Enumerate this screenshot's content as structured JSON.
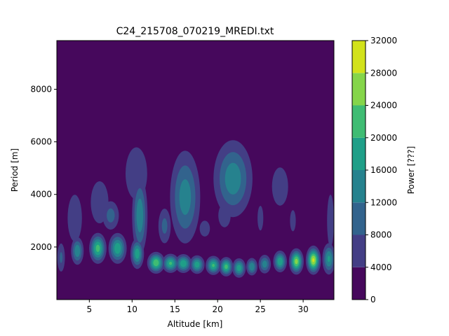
{
  "chart_data": {
    "type": "heatmap",
    "subtype": "filled-contour",
    "title": "C24_215708_070219_MREDI.txt",
    "xlabel": "Altitude [km]",
    "ylabel": "Period [m]",
    "xlim": [
      1.2,
      33.6
    ],
    "ylim": [
      0,
      9850
    ],
    "xticks": [
      5,
      10,
      15,
      20,
      25,
      30
    ],
    "yticks": [
      2000,
      4000,
      6000,
      8000
    ],
    "colorbar": {
      "label": "Power [???]",
      "levels": [
        0,
        4000,
        8000,
        12000,
        16000,
        20000,
        24000,
        28000,
        32000
      ],
      "tick_labels": [
        "0",
        "4000",
        "8000",
        "12000",
        "16000",
        "20000",
        "24000",
        "28000",
        "32000"
      ],
      "colors": [
        "#46085c",
        "#433e85",
        "#32638d",
        "#26828e",
        "#1f9f88",
        "#3fbc73",
        "#85d54a",
        "#d2e21b"
      ]
    },
    "background_level": 0,
    "features": [
      {
        "alt": 1.7,
        "period": 1600,
        "s_alt": 0.35,
        "s_per": 420,
        "power": 9000
      },
      {
        "alt": 3.6,
        "period": 1850,
        "s_alt": 0.45,
        "s_per": 320,
        "power": 15500
      },
      {
        "alt": 3.3,
        "period": 3100,
        "s_alt": 0.85,
        "s_per": 900,
        "power": 6500
      },
      {
        "alt": 6.0,
        "period": 1950,
        "s_alt": 0.55,
        "s_per": 320,
        "power": 22000
      },
      {
        "alt": 6.2,
        "period": 3700,
        "s_alt": 1.3,
        "s_per": 1000,
        "power": 5500
      },
      {
        "alt": 8.3,
        "period": 1950,
        "s_alt": 0.6,
        "s_per": 330,
        "power": 19500
      },
      {
        "alt": 7.5,
        "period": 3200,
        "s_alt": 0.7,
        "s_per": 400,
        "power": 10000
      },
      {
        "alt": 10.6,
        "period": 1750,
        "s_alt": 0.45,
        "s_per": 330,
        "power": 19000
      },
      {
        "alt": 10.9,
        "period": 3200,
        "s_alt": 0.55,
        "s_per": 900,
        "power": 15500
      },
      {
        "alt": 10.5,
        "period": 4800,
        "s_alt": 1.4,
        "s_per": 1100,
        "power": 6000
      },
      {
        "alt": 12.8,
        "period": 1400,
        "s_alt": 0.55,
        "s_per": 220,
        "power": 24000
      },
      {
        "alt": 14.5,
        "period": 1380,
        "s_alt": 0.55,
        "s_per": 200,
        "power": 21000
      },
      {
        "alt": 13.8,
        "period": 2800,
        "s_alt": 0.55,
        "s_per": 500,
        "power": 9500
      },
      {
        "alt": 16.2,
        "period": 3900,
        "s_alt": 1.1,
        "s_per": 1100,
        "power": 14500
      },
      {
        "alt": 16.0,
        "period": 1370,
        "s_alt": 0.55,
        "s_per": 200,
        "power": 20000
      },
      {
        "alt": 17.6,
        "period": 1330,
        "s_alt": 0.5,
        "s_per": 200,
        "power": 19000
      },
      {
        "alt": 19.5,
        "period": 1300,
        "s_alt": 0.5,
        "s_per": 200,
        "power": 21000
      },
      {
        "alt": 21.0,
        "period": 1250,
        "s_alt": 0.45,
        "s_per": 200,
        "power": 22000
      },
      {
        "alt": 22.5,
        "period": 1200,
        "s_alt": 0.45,
        "s_per": 210,
        "power": 19000
      },
      {
        "alt": 24.0,
        "period": 1250,
        "s_alt": 0.4,
        "s_per": 200,
        "power": 16000
      },
      {
        "alt": 25.5,
        "period": 1350,
        "s_alt": 0.45,
        "s_per": 220,
        "power": 14500
      },
      {
        "alt": 27.3,
        "period": 1450,
        "s_alt": 0.45,
        "s_per": 230,
        "power": 20000
      },
      {
        "alt": 29.2,
        "period": 1450,
        "s_alt": 0.45,
        "s_per": 260,
        "power": 26000
      },
      {
        "alt": 31.2,
        "period": 1500,
        "s_alt": 0.45,
        "s_per": 280,
        "power": 29000
      },
      {
        "alt": 33.0,
        "period": 1550,
        "s_alt": 0.45,
        "s_per": 350,
        "power": 17000
      },
      {
        "alt": 18.5,
        "period": 2700,
        "s_alt": 0.9,
        "s_per": 450,
        "power": 5000
      },
      {
        "alt": 21.8,
        "period": 4600,
        "s_alt": 1.4,
        "s_per": 900,
        "power": 15000
      },
      {
        "alt": 20.8,
        "period": 3200,
        "s_alt": 0.8,
        "s_per": 500,
        "power": 6000
      },
      {
        "alt": 25.0,
        "period": 3100,
        "s_alt": 0.5,
        "s_per": 700,
        "power": 5000
      },
      {
        "alt": 27.3,
        "period": 4300,
        "s_alt": 1.3,
        "s_per": 1000,
        "power": 5200
      },
      {
        "alt": 28.8,
        "period": 3000,
        "s_alt": 0.5,
        "s_per": 600,
        "power": 5000
      },
      {
        "alt": 33.2,
        "period": 3000,
        "s_alt": 0.45,
        "s_per": 1100,
        "power": 6000
      }
    ]
  }
}
